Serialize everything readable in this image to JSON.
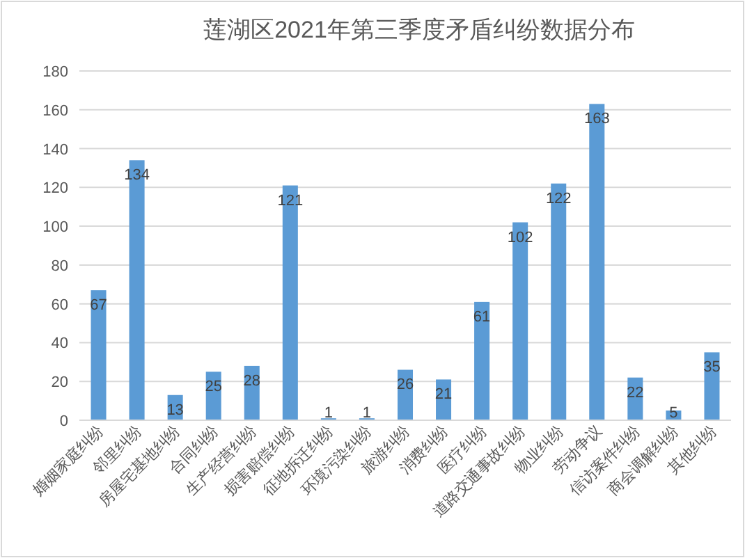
{
  "chart_data": {
    "type": "bar",
    "title": "莲湖区2021年第三季度矛盾纠纷数据分布",
    "categories": [
      "婚姻家庭纠纷",
      "邻里纠纷",
      "房屋宅基地纠纷",
      "合同纠纷",
      "生产经营纠纷",
      "损害赔偿纠纷",
      "征地拆迁纠纷",
      "环境污染纠纷",
      "旅游纠纷",
      "消费纠纷",
      "医疗纠纷",
      "道路交通事故纠纷",
      "物业纠纷",
      "劳动争议",
      "信访案件纠纷",
      "商会调解纠纷",
      "其他纠纷"
    ],
    "values": [
      67,
      134,
      13,
      25,
      28,
      121,
      1,
      1,
      26,
      21,
      61,
      102,
      122,
      163,
      22,
      5,
      35
    ],
    "color": "#5b9bd5",
    "ylim": [
      0,
      180
    ],
    "yticks": [
      0,
      20,
      40,
      60,
      80,
      100,
      120,
      140,
      160,
      180
    ],
    "grid": "y",
    "data_labels": true
  }
}
